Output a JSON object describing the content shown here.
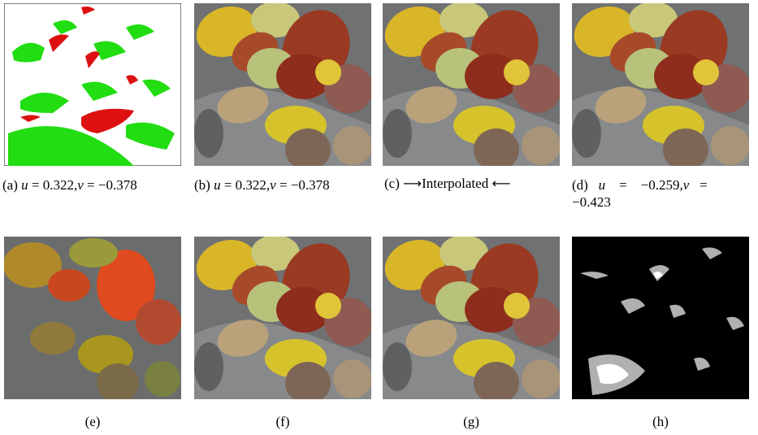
{
  "figure": {
    "panels": [
      {
        "id": "a",
        "label": "(a)",
        "u_label": "u",
        "u_value": "0.322",
        "v_label": "v",
        "v_value": "−0.378",
        "content": "green-red mask"
      },
      {
        "id": "b",
        "label": "(b)",
        "u_label": "u",
        "u_value": "0.322",
        "v_label": "v",
        "v_value": "−0.378",
        "content": "leaf photo"
      },
      {
        "id": "c",
        "label": "(c)",
        "text": "Interpolated",
        "content": "leaf photo"
      },
      {
        "id": "d",
        "label": "(d)",
        "u_label": "u",
        "u_value": "−0.259",
        "v_label": "v",
        "v_value": "−0.423",
        "content": "leaf photo"
      },
      {
        "id": "e",
        "label": "(e)",
        "content": "chroma map"
      },
      {
        "id": "f",
        "label": "(f)",
        "content": "leaf photo"
      },
      {
        "id": "g",
        "label": "(g)",
        "content": "leaf photo"
      },
      {
        "id": "h",
        "label": "(h)",
        "content": "difference map"
      }
    ],
    "eq": "=",
    "comma": ",",
    "arrow_right": "⟶",
    "arrow_left": "⟵"
  },
  "colors": {
    "mask_green": "#22dd11",
    "mask_red": "#dd1111",
    "stone": "#7a7c7e",
    "dark_bg": "#000000"
  }
}
